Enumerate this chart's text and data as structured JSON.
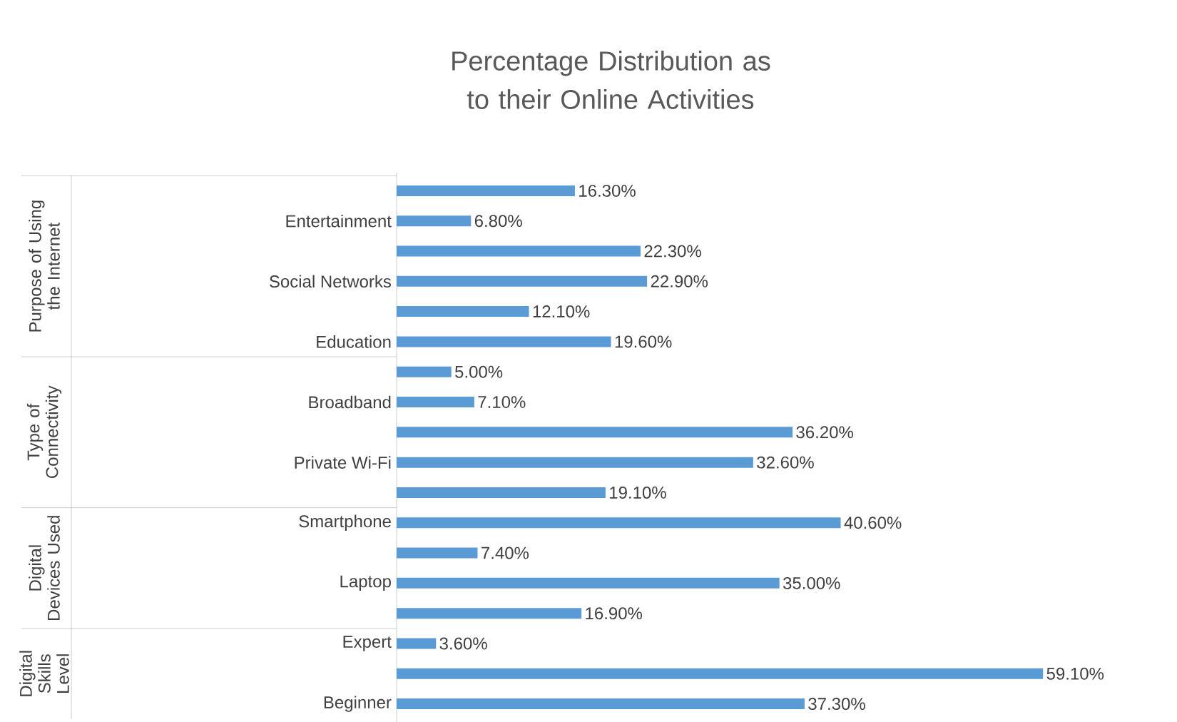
{
  "chart_data": {
    "type": "bar",
    "orientation": "horizontal",
    "title": "Percentage Distribution as to their Online Activities",
    "categories": [
      null,
      "Entertainment",
      null,
      "Social Networks",
      null,
      "Education",
      null,
      "Broadband",
      null,
      "Private Wi-Fi",
      null,
      "Smartphone",
      null,
      "Laptop",
      null,
      "Expert",
      null,
      "Beginner"
    ],
    "values": [
      16.3,
      6.8,
      22.3,
      22.9,
      12.1,
      19.6,
      5.0,
      7.1,
      36.2,
      32.6,
      19.1,
      40.6,
      7.4,
      35.0,
      16.9,
      3.6,
      59.1,
      37.3
    ],
    "value_labels": [
      "16.30%",
      "6.80%",
      "22.30%",
      "22.90%",
      "12.10%",
      "19.60%",
      "5.00%",
      "7.10%",
      "36.20%",
      "32.60%",
      "19.10%",
      "40.60%",
      "7.40%",
      "35.00%",
      "16.90%",
      "3.60%",
      "59.10%",
      "37.30%"
    ],
    "color": "#5b9bd5",
    "annotations": [
      "Purpose of Using the Internet",
      "Type of Connectivity",
      "Digital Devices Used",
      "Digital Skills Level"
    ]
  }
}
